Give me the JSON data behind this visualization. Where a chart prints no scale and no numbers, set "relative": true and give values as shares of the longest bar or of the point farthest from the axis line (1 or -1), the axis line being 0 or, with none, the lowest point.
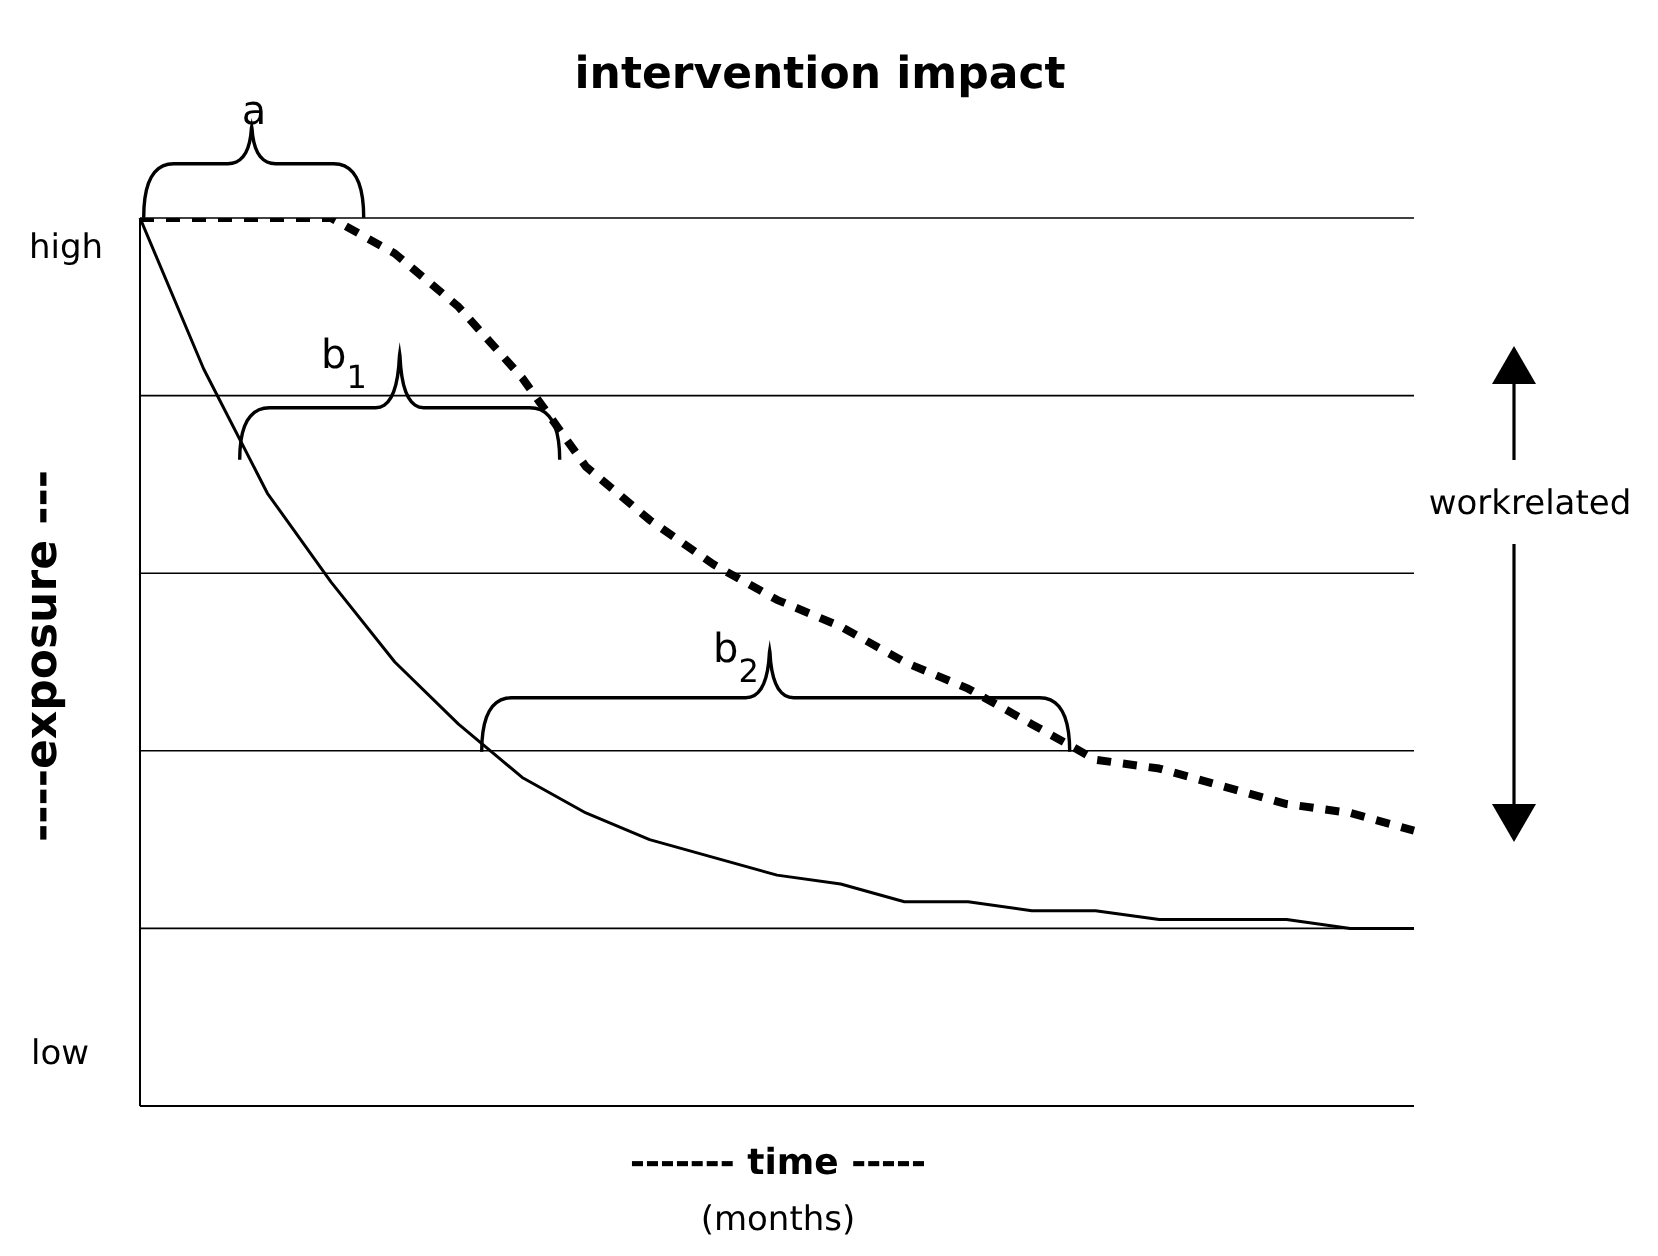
{
  "chart_data": {
    "type": "line",
    "title": "intervention impact",
    "xlabel": "------- time -----",
    "ylabel": "----exposure ---",
    "relative": true,
    "categories": [
      null,
      null,
      null,
      null,
      null,
      null,
      null,
      null,
      null,
      null,
      null,
      null,
      null,
      null,
      null,
      null,
      null,
      null,
      null,
      null,
      null
    ],
    "series": [
      {
        "color": "#000000",
        "line_style": "solid",
        "values": [
          1,
          0.83,
          0.69,
          0.59,
          0.5,
          0.43,
          0.37,
          0.33,
          0.3,
          0.28,
          0.26,
          0.25,
          0.23,
          0.23,
          0.22,
          0.22,
          0.21,
          0.21,
          0.21,
          0.2,
          0.2
        ]
      },
      {
        "color": "#000000",
        "line_style": "dashed",
        "values": [
          1,
          1,
          1,
          1,
          0.96,
          0.9,
          0.82,
          0.72,
          0.66,
          0.61,
          0.57,
          0.54,
          0.5,
          0.47,
          0.43,
          0.39,
          0.38,
          0.36,
          0.34,
          0.33,
          0.31
        ]
      }
    ],
    "ref_lines": [
      {
        "axis": "y",
        "value": 0.2,
        "color": "#000000"
      },
      {
        "axis": "y",
        "value": 0.4,
        "color": "#000000"
      },
      {
        "axis": "y",
        "value": 0.6,
        "color": "#000000"
      },
      {
        "axis": "y",
        "value": 0.8,
        "color": "#000000"
      },
      {
        "axis": "y",
        "value": 1,
        "color": "#000000"
      }
    ],
    "marker": "none",
    "annotations": [
      "a",
      "b$_{1}$",
      "b$_{2}$",
      "workrelated",
      "(months)",
      "high",
      "low"
    ]
  }
}
